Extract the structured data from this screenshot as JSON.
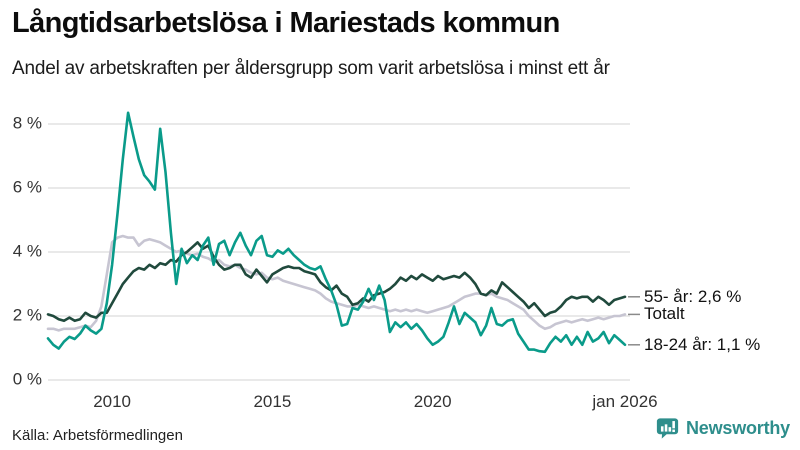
{
  "header": {
    "title": "Långtidsarbetslösa i Mariestads kommun",
    "subtitle": "Andel av arbetskraften per åldersgrupp som varit arbetslösa i minst ett år"
  },
  "chart_data": {
    "type": "line",
    "unit": "percent of labour force",
    "x_start": "jan 2008",
    "x_end": "jan 2026",
    "points_step_months": 2,
    "ylim": [
      0,
      8.6
    ],
    "grid": "horizontal",
    "legend_position": "right-end-labels",
    "colors": {
      "age_55_plus": "#204a3d",
      "total": "#c7c5d2",
      "age_18_24": "#0a9b8a",
      "gridline": "#dcdcdc",
      "connector": "#8a8a8a"
    },
    "y_ticks": [
      {
        "label": "0 %",
        "value": 0
      },
      {
        "label": "2 %",
        "value": 2
      },
      {
        "label": "4 %",
        "value": 4
      },
      {
        "label": "6 %",
        "value": 6
      },
      {
        "label": "8 %",
        "value": 8
      }
    ],
    "x_ticks": [
      {
        "label": "2010",
        "month": 24
      },
      {
        "label": "2015",
        "month": 84
      },
      {
        "label": "2020",
        "month": 144
      },
      {
        "label": "jan 2026",
        "month": 216
      }
    ],
    "series": [
      {
        "id": "totalt",
        "name": "Totalt",
        "end_label": "Totalt",
        "end_value": 2.05,
        "color": "#c7c5d2",
        "values": [
          1.6,
          1.6,
          1.55,
          1.6,
          1.6,
          1.6,
          1.65,
          1.7,
          1.65,
          1.85,
          2.3,
          3.3,
          4.3,
          4.45,
          4.5,
          4.45,
          4.45,
          4.2,
          4.35,
          4.4,
          4.35,
          4.3,
          4.2,
          4.1,
          4.0,
          4.05,
          3.95,
          3.9,
          3.95,
          3.85,
          3.8,
          3.7,
          3.75,
          3.6,
          3.55,
          3.6,
          3.5,
          3.45,
          3.35,
          3.3,
          3.35,
          3.2,
          3.15,
          3.2,
          3.1,
          3.05,
          3.0,
          2.95,
          2.9,
          2.85,
          2.8,
          2.7,
          2.55,
          2.45,
          2.4,
          2.35,
          2.3,
          2.3,
          2.35,
          2.3,
          2.25,
          2.3,
          2.25,
          2.2,
          2.15,
          2.2,
          2.15,
          2.2,
          2.15,
          2.2,
          2.15,
          2.1,
          2.15,
          2.2,
          2.25,
          2.3,
          2.4,
          2.5,
          2.6,
          2.65,
          2.7,
          2.7,
          2.65,
          2.7,
          2.6,
          2.55,
          2.5,
          2.4,
          2.3,
          2.2,
          2.0,
          1.85,
          1.7,
          1.6,
          1.65,
          1.75,
          1.8,
          1.85,
          1.8,
          1.85,
          1.9,
          1.85,
          1.9,
          1.95,
          1.9,
          1.95,
          2.0,
          2.0,
          2.05
        ]
      },
      {
        "id": "55-ar",
        "name": "55- år",
        "end_label": "55- år: 2,6 %",
        "end_value": 2.6,
        "color": "#204a3d",
        "values": [
          2.05,
          2.0,
          1.9,
          1.85,
          1.95,
          1.85,
          1.9,
          2.1,
          2.0,
          1.95,
          2.1,
          2.1,
          2.4,
          2.7,
          3.0,
          3.2,
          3.4,
          3.5,
          3.45,
          3.6,
          3.5,
          3.65,
          3.6,
          3.75,
          3.7,
          3.9,
          4.0,
          4.15,
          4.3,
          4.1,
          4.2,
          3.85,
          3.6,
          3.45,
          3.5,
          3.6,
          3.6,
          3.3,
          3.2,
          3.45,
          3.25,
          3.05,
          3.3,
          3.4,
          3.5,
          3.55,
          3.5,
          3.5,
          3.4,
          3.35,
          3.3,
          3.05,
          2.9,
          2.8,
          2.95,
          2.7,
          2.6,
          2.35,
          2.4,
          2.55,
          2.45,
          2.65,
          2.7,
          2.75,
          2.85,
          3.0,
          3.2,
          3.1,
          3.25,
          3.15,
          3.3,
          3.2,
          3.1,
          3.25,
          3.15,
          3.2,
          3.25,
          3.2,
          3.35,
          3.2,
          3.0,
          2.7,
          2.65,
          2.8,
          2.7,
          3.05,
          2.9,
          2.75,
          2.6,
          2.45,
          2.25,
          2.4,
          2.2,
          2.0,
          2.1,
          2.15,
          2.3,
          2.5,
          2.6,
          2.55,
          2.6,
          2.6,
          2.45,
          2.6,
          2.5,
          2.35,
          2.5,
          2.55,
          2.6
        ]
      },
      {
        "id": "18-24-ar",
        "name": "18-24 år",
        "end_label": "18-24 år: 1,1 %",
        "end_value": 1.1,
        "color": "#0a9b8a",
        "values": [
          1.3,
          1.1,
          0.98,
          1.2,
          1.35,
          1.28,
          1.45,
          1.7,
          1.55,
          1.45,
          1.6,
          2.4,
          3.6,
          5.2,
          6.9,
          8.35,
          7.6,
          6.9,
          6.4,
          6.2,
          5.95,
          7.85,
          6.5,
          4.6,
          3.0,
          4.1,
          3.65,
          3.9,
          3.75,
          4.2,
          4.45,
          3.6,
          4.25,
          4.35,
          3.9,
          4.3,
          4.6,
          4.2,
          3.9,
          4.35,
          4.5,
          3.9,
          3.85,
          4.05,
          3.95,
          4.1,
          3.9,
          3.75,
          3.6,
          3.5,
          3.45,
          3.55,
          3.15,
          2.8,
          2.35,
          1.7,
          1.75,
          2.25,
          2.2,
          2.45,
          2.85,
          2.5,
          2.95,
          2.5,
          1.5,
          1.8,
          1.65,
          1.8,
          1.6,
          1.75,
          1.55,
          1.3,
          1.1,
          1.2,
          1.35,
          1.8,
          2.3,
          1.75,
          2.1,
          1.95,
          1.8,
          1.4,
          1.7,
          2.25,
          1.75,
          1.7,
          1.85,
          1.9,
          1.45,
          1.2,
          0.95,
          0.95,
          0.9,
          0.88,
          1.15,
          1.35,
          1.2,
          1.4,
          1.1,
          1.35,
          1.1,
          1.5,
          1.2,
          1.3,
          1.5,
          1.15,
          1.4,
          1.25,
          1.1
        ]
      }
    ],
    "title": "Långtidsarbetslösa i Mariestads kommun",
    "xlabel": "",
    "ylabel": ""
  },
  "footer": {
    "source": "Källa: Arbetsförmedlingen",
    "brand": "Newsworthy",
    "brand_color": "#2e8e8c"
  }
}
